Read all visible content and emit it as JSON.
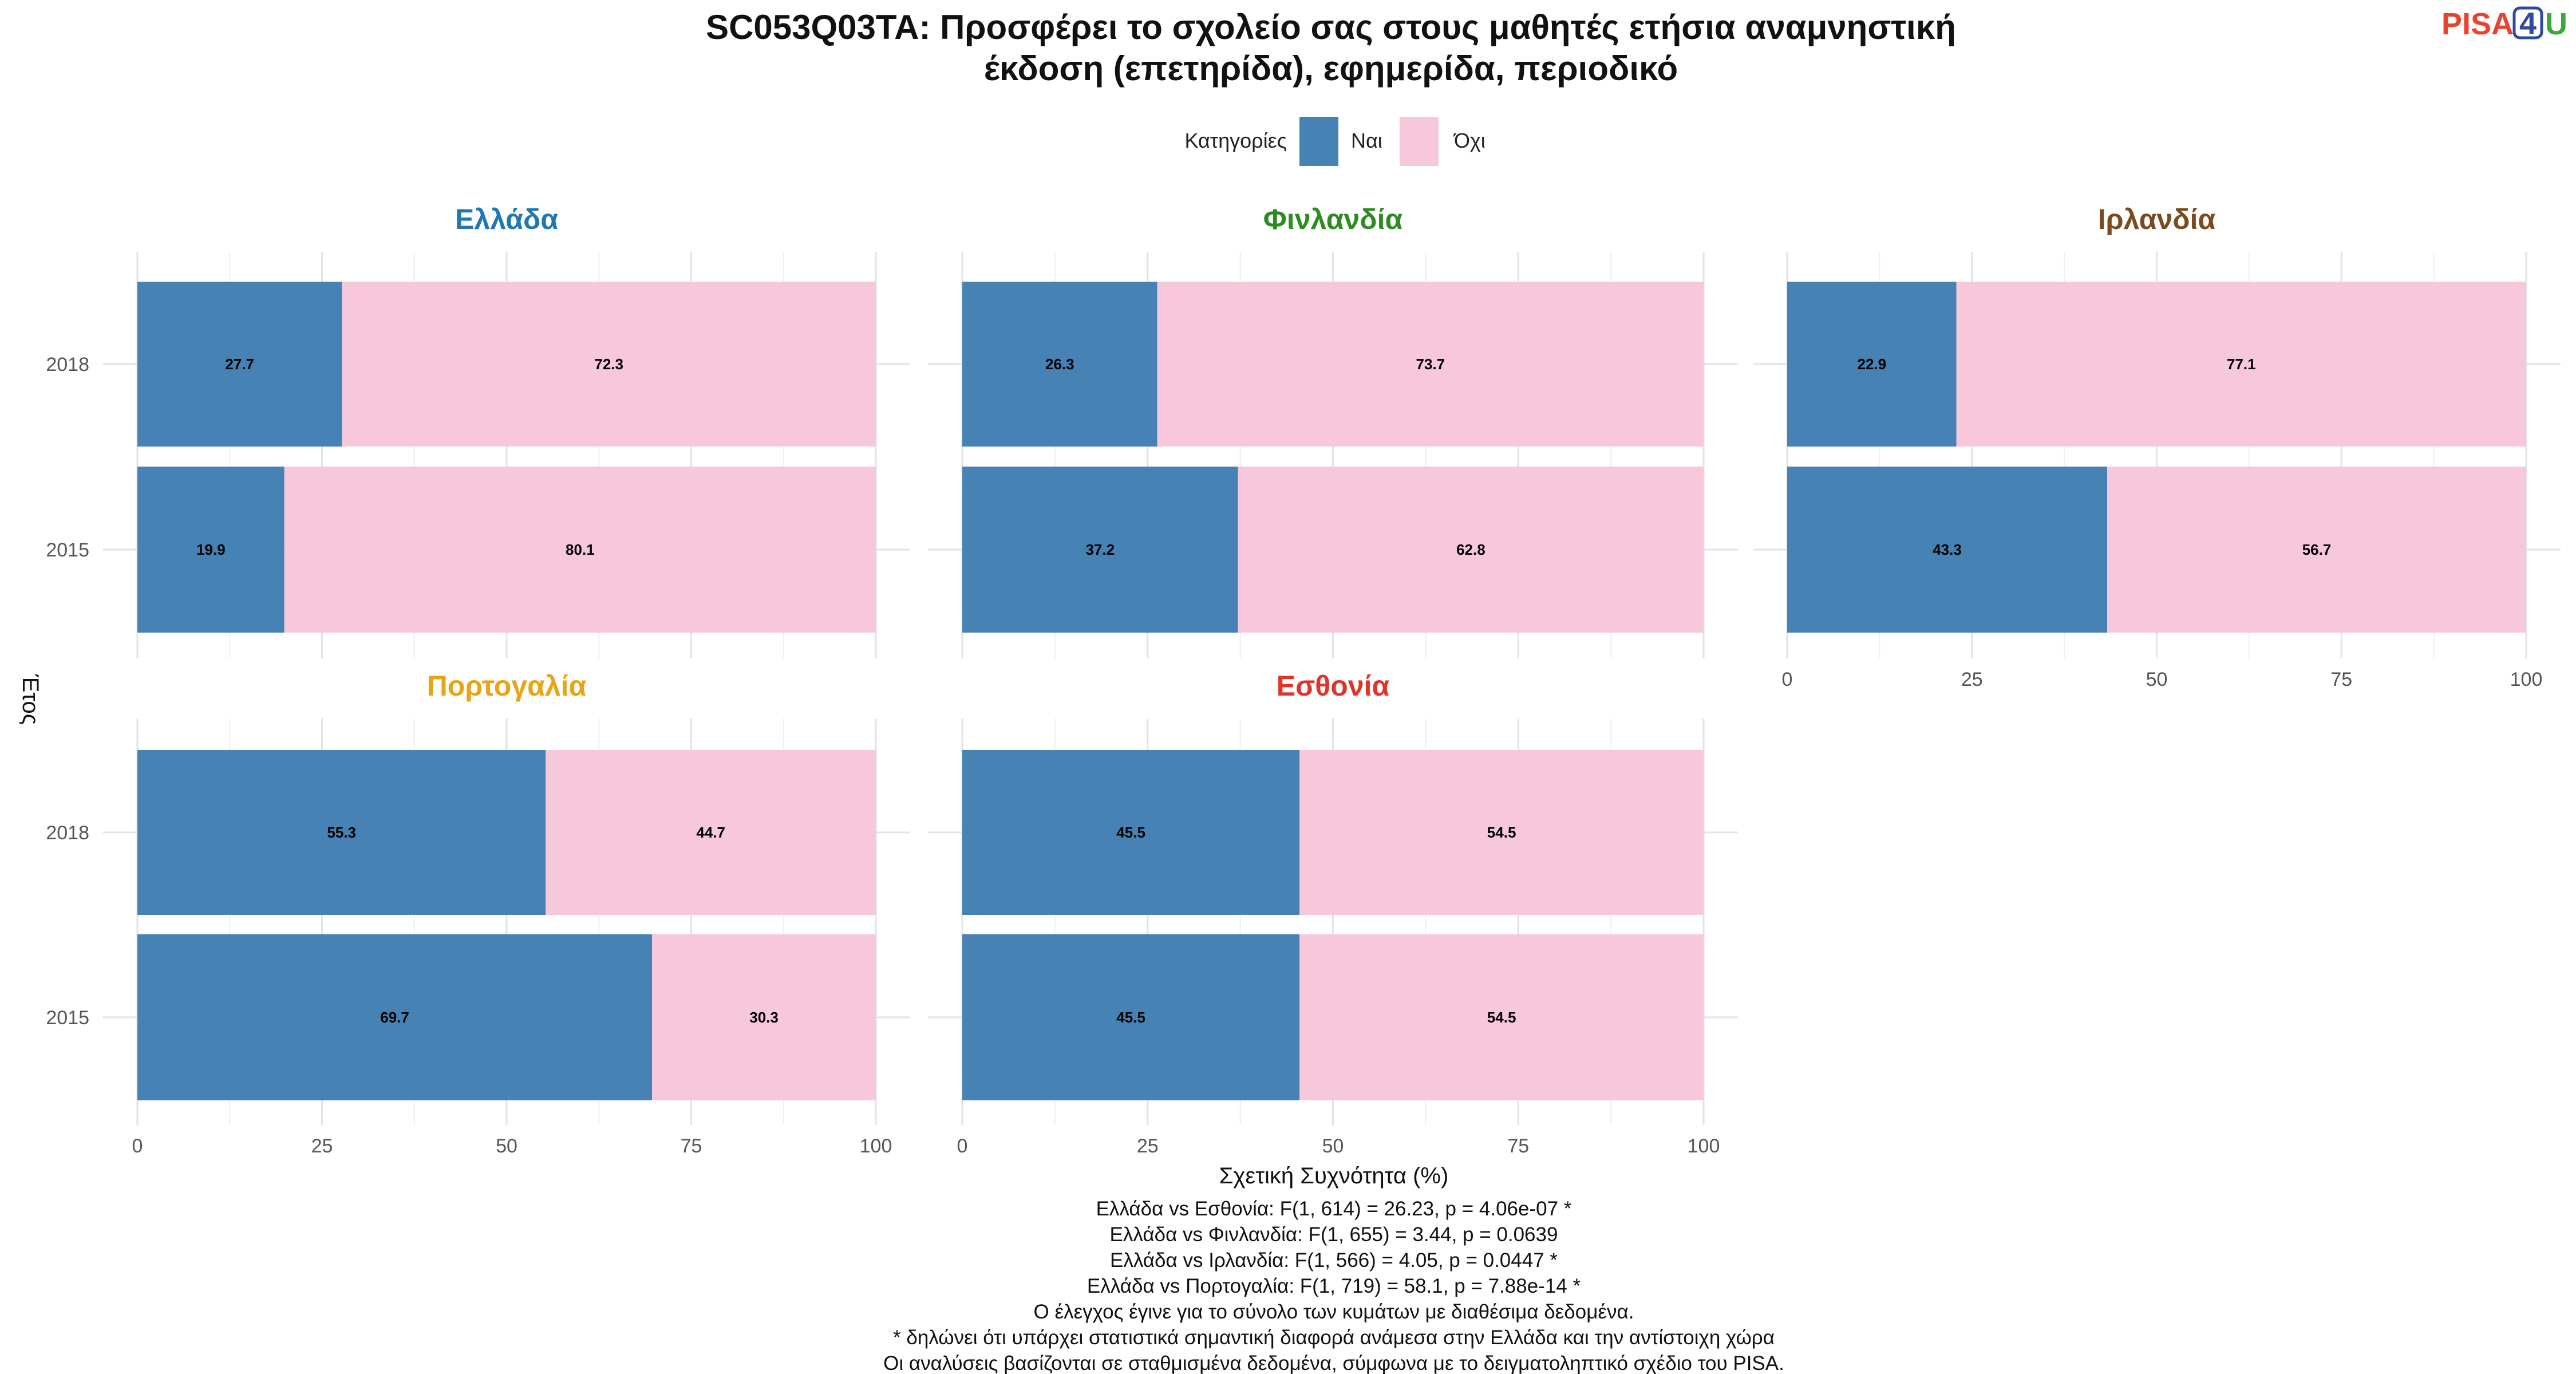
{
  "title_lines": [
    "SC053Q03TA: Προσφέρει το σχολείο σας στους μαθητές ετήσια αναμνηστική",
    "έκδοση (επετηρίδα), εφημερίδα, περιοδικό"
  ],
  "logo": {
    "part1": "PISA",
    "digit": "4",
    "part2": "U",
    "color1": "#e8432e",
    "color2": "#2e4a9c",
    "color3": "#3aa83a"
  },
  "legend": {
    "title": "Κατηγορίες",
    "items": [
      {
        "label": "Ναι",
        "color": "#4682b4"
      },
      {
        "label": "Όχι",
        "color": "#f7c8dc"
      }
    ]
  },
  "chart_data": {
    "type": "bar",
    "orientation": "horizontal",
    "stacked": true,
    "xlabel": "Σχετική Συχνότητα (%)",
    "ylabel": "Έτος",
    "xlim": [
      0,
      100
    ],
    "xticks": [
      0,
      25,
      50,
      75,
      100
    ],
    "years": [
      "2018",
      "2015"
    ],
    "series_names": [
      "Ναι",
      "Όχι"
    ],
    "panels": [
      {
        "name": "Ελλάδα",
        "title_color": "#1f77b4",
        "values": {
          "2018": [
            27.7,
            72.3
          ],
          "2015": [
            19.9,
            80.1
          ]
        }
      },
      {
        "name": "Φινλανδία",
        "title_color": "#2e8b22",
        "values": {
          "2018": [
            26.3,
            73.7
          ],
          "2015": [
            37.2,
            62.8
          ]
        }
      },
      {
        "name": "Ιρλανδία",
        "title_color": "#7b4a1e",
        "values": {
          "2018": [
            22.9,
            77.1
          ],
          "2015": [
            43.3,
            56.7
          ]
        }
      },
      {
        "name": "Πορτογαλία",
        "title_color": "#e8a317",
        "values": {
          "2018": [
            55.3,
            44.7
          ],
          "2015": [
            69.7,
            30.3
          ]
        }
      },
      {
        "name": "Εσθονία",
        "title_color": "#e0342b",
        "values": {
          "2018": [
            45.5,
            54.5
          ],
          "2015": [
            45.5,
            54.5
          ]
        }
      }
    ]
  },
  "footnotes": [
    "Ελλάδα vs Εσθονία: F(1, 614) = 26.23, p = 4.06e-07 *",
    "Ελλάδα vs Φινλανδία: F(1, 655) = 3.44, p = 0.0639",
    "Ελλάδα vs Ιρλανδία: F(1, 566) = 4.05, p = 0.0447 *",
    "Ελλάδα vs Πορτογαλία: F(1, 719) = 58.1, p = 7.88e-14 *",
    "Ο έλεγχος έγινε για το σύνολο των κυμάτων με διαθέσιμα δεδομένα.",
    "* δηλώνει ότι υπάρχει στατιστικά σημαντική διαφορά ανάμεσα στην Ελλάδα και την αντίστοιχη χώρα",
    "Οι αναλύσεις βασίζονται σε σταθμισμένα δεδομένα, σύμφωνα με το δειγματοληπτικό σχέδιο του PISA."
  ]
}
